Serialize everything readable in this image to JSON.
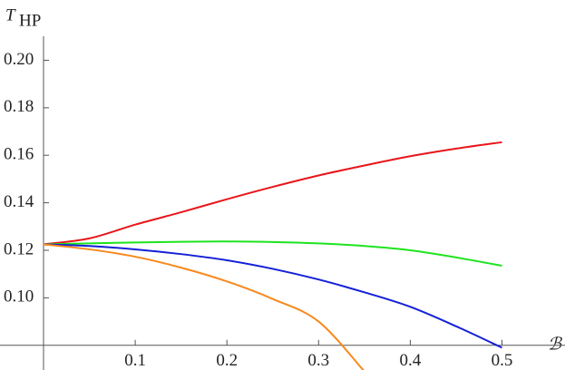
{
  "chart_data": {
    "type": "line",
    "ylabel": "T",
    "ylabel_subscript": "HP",
    "xlabel": "ℬ",
    "xlim": [
      0,
      0.546
    ],
    "ylim": [
      0.0696,
      0.2185
    ],
    "axis_origin": [
      0,
      0.08
    ],
    "xticks": [
      0.1,
      0.2,
      0.3,
      0.4,
      0.5
    ],
    "yticks": [
      {
        "value": 0.1,
        "label": "0.10"
      },
      {
        "value": 0.12,
        "label": "0.12"
      },
      {
        "value": 0.14,
        "label": "0.14"
      },
      {
        "value": 0.16,
        "label": "0.16"
      },
      {
        "value": 0.18,
        "label": "0.18"
      },
      {
        "value": 0.2,
        "label": "0.20"
      }
    ],
    "series": [
      {
        "color": "#e8161a",
        "x": [
          0,
          0.05,
          0.1,
          0.15,
          0.2,
          0.25,
          0.3,
          0.35,
          0.4,
          0.45,
          0.5
        ],
        "values": [
          0.1225,
          0.125,
          0.1308,
          0.136,
          0.1415,
          0.1467,
          0.1515,
          0.1557,
          0.1596,
          0.1628,
          0.1655
        ]
      },
      {
        "color": "#1ee41e",
        "x": [
          0,
          0.05,
          0.1,
          0.15,
          0.2,
          0.25,
          0.3,
          0.35,
          0.4,
          0.45,
          0.5
        ],
        "values": [
          0.1225,
          0.1229,
          0.1233,
          0.1236,
          0.1237,
          0.1235,
          0.1229,
          0.1218,
          0.12,
          0.117,
          0.1135
        ]
      },
      {
        "color": "#1420d6",
        "x": [
          0,
          0.05,
          0.1,
          0.15,
          0.2,
          0.25,
          0.3,
          0.35,
          0.4,
          0.45,
          0.5
        ],
        "values": [
          0.1225,
          0.1218,
          0.1204,
          0.1184,
          0.1158,
          0.1122,
          0.1077,
          0.1023,
          0.0962,
          0.088,
          0.079
        ]
      },
      {
        "color": "#f7891c",
        "x": [
          0,
          0.05,
          0.1,
          0.15,
          0.2,
          0.25,
          0.3,
          0.35
        ],
        "values": [
          0.1225,
          0.1204,
          0.1173,
          0.1127,
          0.1069,
          0.0995,
          0.09,
          0.069
        ]
      }
    ]
  }
}
